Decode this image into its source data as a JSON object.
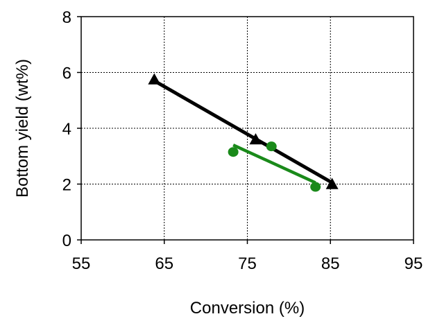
{
  "chart_data": {
    "type": "scatter",
    "title": "",
    "xlabel": "Conversion (%)",
    "ylabel": "Bottom yield (wt%)",
    "xlim": [
      55,
      95
    ],
    "ylim": [
      0,
      8
    ],
    "x_ticks": [
      "55",
      "65",
      "75",
      "85",
      "95"
    ],
    "y_ticks": [
      "0",
      "2",
      "4",
      "6",
      "8"
    ],
    "grid": {
      "x": true,
      "y": true,
      "style": "dashed"
    },
    "legend": "none",
    "series": [
      {
        "marker": "triangle",
        "color": "#000000",
        "points": [
          {
            "x": 63.8,
            "y": 5.75
          },
          {
            "x": 76.0,
            "y": 3.6
          },
          {
            "x": 85.2,
            "y": 2.0
          }
        ],
        "fit_line": {
          "x": [
            63.8,
            85.2
          ],
          "y": [
            5.7,
            2.05
          ]
        }
      },
      {
        "marker": "circle",
        "color": "#1a8a1a",
        "points": [
          {
            "x": 73.3,
            "y": 3.15
          },
          {
            "x": 77.9,
            "y": 3.35
          },
          {
            "x": 83.2,
            "y": 1.9
          }
        ],
        "fit_line": {
          "x": [
            73.3,
            83.2
          ],
          "y": [
            3.4,
            2.05
          ]
        }
      }
    ]
  }
}
